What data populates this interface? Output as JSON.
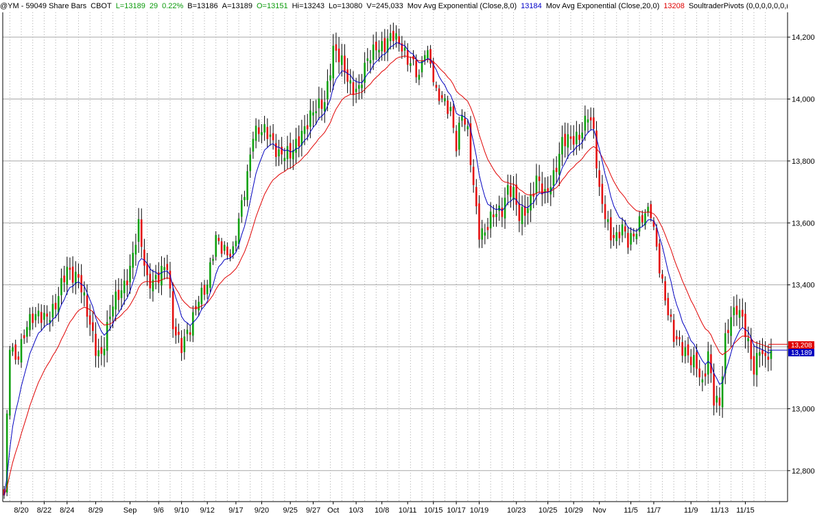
{
  "header": {
    "symbol": "@YM - 59049 Share Bars",
    "exchange": "CBOT",
    "last": "L=13189",
    "change": "29",
    "change_pct": "0.22%",
    "bid": "B=13186",
    "ask": "A=13189",
    "open": "O=13151",
    "high": "Hi=13243",
    "low": "Lo=13080",
    "volume": "V=245,033",
    "study1_name": "Mov Avg Exponential (Close,8,0)",
    "study1_value": "13184",
    "study2_name": "Mov Avg Exponential (Close,20,0)",
    "study2_value": "13208",
    "study3_name": "SoultraderPivots (0,0,0,0,0,0,("
  },
  "colors": {
    "up": "#10a010",
    "down": "#e41010",
    "ema_fast": "#0000c0",
    "ema_slow": "#e00000",
    "grid": "#a8a8a8",
    "axis": "#000000"
  },
  "chart_data": {
    "type": "candlestick",
    "ylim": [
      12700,
      14280
    ],
    "y_ticks": [
      12800,
      13000,
      13200,
      13400,
      13600,
      13800,
      14000,
      14200
    ],
    "y_tick_labels": [
      "12,800",
      "13,000",
      "13,200",
      "13,400",
      "13,600",
      "13,800",
      "14,000",
      "14,200"
    ],
    "x_labels": [
      {
        "label": "8/20",
        "index": 6
      },
      {
        "label": "8/22",
        "index": 14
      },
      {
        "label": "8/24",
        "index": 22
      },
      {
        "label": "8/29",
        "index": 32
      },
      {
        "label": "Sep",
        "index": 44
      },
      {
        "label": "9/6",
        "index": 54
      },
      {
        "label": "9/10",
        "index": 62
      },
      {
        "label": "9/12",
        "index": 71
      },
      {
        "label": "9/17",
        "index": 81
      },
      {
        "label": "9/20",
        "index": 90
      },
      {
        "label": "9/25",
        "index": 100
      },
      {
        "label": "9/27",
        "index": 108
      },
      {
        "label": "Oct",
        "index": 115
      },
      {
        "label": "10/3",
        "index": 123
      },
      {
        "label": "10/8",
        "index": 132
      },
      {
        "label": "10/11",
        "index": 141
      },
      {
        "label": "10/15",
        "index": 150
      },
      {
        "label": "10/17",
        "index": 158
      },
      {
        "label": "10/19",
        "index": 166
      },
      {
        "label": "10/23",
        "index": 179
      },
      {
        "label": "10/25",
        "index": 190
      },
      {
        "label": "10/29",
        "index": 199
      },
      {
        "label": "Nov",
        "index": 208
      },
      {
        "label": "11/5",
        "index": 219
      },
      {
        "label": "11/7",
        "index": 227
      },
      {
        "label": "11/9",
        "index": 240
      },
      {
        "label": "11/13",
        "index": 250
      },
      {
        "label": "11/15",
        "index": 259
      }
    ],
    "last_price_labels": [
      {
        "label": "13,208",
        "value": 13208,
        "color": "#e00000"
      },
      {
        "label": "13,189",
        "value": 13189,
        "color": "#0000c0"
      }
    ],
    "key_points": [
      [
        0,
        12720
      ],
      [
        2,
        13200
      ],
      [
        4,
        13150
      ],
      [
        8,
        13280
      ],
      [
        14,
        13300
      ],
      [
        18,
        13330
      ],
      [
        22,
        13450
      ],
      [
        26,
        13430
      ],
      [
        29,
        13300
      ],
      [
        32,
        13200
      ],
      [
        34,
        13180
      ],
      [
        38,
        13330
      ],
      [
        44,
        13450
      ],
      [
        47,
        13580
      ],
      [
        50,
        13420
      ],
      [
        54,
        13420
      ],
      [
        57,
        13460
      ],
      [
        59,
        13280
      ],
      [
        62,
        13200
      ],
      [
        65,
        13250
      ],
      [
        68,
        13370
      ],
      [
        71,
        13400
      ],
      [
        74,
        13540
      ],
      [
        77,
        13520
      ],
      [
        80,
        13500
      ],
      [
        83,
        13650
      ],
      [
        85,
        13760
      ],
      [
        87,
        13900
      ],
      [
        90,
        13890
      ],
      [
        93,
        13880
      ],
      [
        96,
        13830
      ],
      [
        100,
        13810
      ],
      [
        104,
        13900
      ],
      [
        108,
        13950
      ],
      [
        112,
        14000
      ],
      [
        115,
        14160
      ],
      [
        118,
        14110
      ],
      [
        121,
        14050
      ],
      [
        124,
        14030
      ],
      [
        127,
        14120
      ],
      [
        130,
        14180
      ],
      [
        133,
        14170
      ],
      [
        136,
        14200
      ],
      [
        139,
        14180
      ],
      [
        141,
        14130
      ],
      [
        143,
        14100
      ],
      [
        145,
        14060
      ],
      [
        147,
        14170
      ],
      [
        149,
        14130
      ],
      [
        151,
        14010
      ],
      [
        154,
        13980
      ],
      [
        156,
        13970
      ],
      [
        158,
        13860
      ],
      [
        160,
        13950
      ],
      [
        162,
        13880
      ],
      [
        164,
        13720
      ],
      [
        166,
        13580
      ],
      [
        168,
        13570
      ],
      [
        171,
        13620
      ],
      [
        174,
        13650
      ],
      [
        176,
        13720
      ],
      [
        178,
        13690
      ],
      [
        180,
        13610
      ],
      [
        183,
        13660
      ],
      [
        186,
        13740
      ],
      [
        189,
        13680
      ],
      [
        192,
        13760
      ],
      [
        195,
        13860
      ],
      [
        198,
        13860
      ],
      [
        201,
        13890
      ],
      [
        204,
        13950
      ],
      [
        206,
        13880
      ],
      [
        208,
        13700
      ],
      [
        210,
        13640
      ],
      [
        212,
        13560
      ],
      [
        214,
        13540
      ],
      [
        216,
        13580
      ],
      [
        218,
        13550
      ],
      [
        221,
        13580
      ],
      [
        224,
        13620
      ],
      [
        226,
        13640
      ],
      [
        228,
        13530
      ],
      [
        230,
        13400
      ],
      [
        232,
        13300
      ],
      [
        234,
        13230
      ],
      [
        236,
        13220
      ],
      [
        238,
        13190
      ],
      [
        240,
        13150
      ],
      [
        242,
        13130
      ],
      [
        244,
        13080
      ],
      [
        246,
        13190
      ],
      [
        248,
        13030
      ],
      [
        250,
        13000
      ],
      [
        252,
        13220
      ],
      [
        254,
        13310
      ],
      [
        256,
        13330
      ],
      [
        258,
        13280
      ],
      [
        260,
        13200
      ],
      [
        262,
        13130
      ],
      [
        264,
        13210
      ],
      [
        266,
        13150
      ],
      [
        268,
        13189
      ]
    ],
    "count": 269
  }
}
